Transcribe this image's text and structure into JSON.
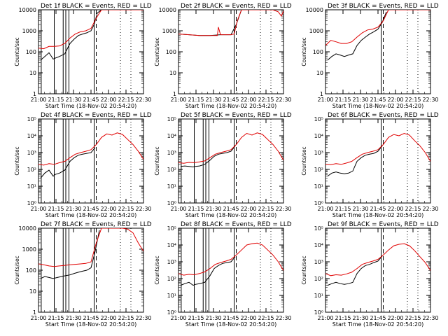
{
  "x_tick_labels": [
    "21:00",
    "21:15",
    "21:30",
    "21:45",
    "22:00",
    "22:15",
    "22:30"
  ],
  "x_axis_label": "Start Time (18-Nov-02 20:54:20)",
  "y_axis_label": "Counts/sec",
  "colors": {
    "events": "#000000",
    "lld": "#e00000"
  },
  "chart_data": [
    {
      "type": "line",
      "title": "Det 1f BLACK = Events, RED = LLD",
      "yscale": "log",
      "ylim": [
        1,
        10000
      ],
      "ytick_style": "plain",
      "grid": false,
      "xlabel": "Start Time (18-Nov-02 20:54:20)",
      "ylabel": "Counts/sec",
      "x_unit": "minutes since 20:54:20",
      "xlim": [
        0,
        100
      ],
      "solid_vlines": [
        2.6,
        15,
        23.5,
        26,
        29,
        53
      ],
      "dashed_vlines": [
        55
      ],
      "dotted_vlines": [
        78,
        88
      ],
      "saturate": true,
      "series": [
        {
          "name": "Events",
          "color": "#000000",
          "x": [
            2,
            6,
            10,
            14,
            16,
            20,
            25,
            30,
            34,
            38,
            42,
            46,
            50,
            53,
            56,
            60
          ],
          "y": [
            40,
            60,
            90,
            45,
            50,
            60,
            80,
            250,
            400,
            600,
            700,
            800,
            1000,
            2000,
            7000,
            10000
          ]
        },
        {
          "name": "LLD",
          "color": "#e00000",
          "x": [
            0,
            5,
            10,
            15,
            20,
            25,
            30,
            35,
            40,
            45,
            50,
            55,
            60,
            65,
            70,
            75,
            80,
            85,
            90,
            95,
            100
          ],
          "y": [
            150,
            140,
            180,
            180,
            190,
            250,
            450,
            700,
            900,
            1000,
            1300,
            4000,
            10000,
            10000,
            10000,
            10000,
            10000,
            10000,
            10000,
            10000,
            10000
          ]
        }
      ]
    },
    {
      "type": "line",
      "title": "Det 2f BLACK = Events, RED = LLD",
      "yscale": "log",
      "ylim": [
        1,
        10000
      ],
      "ytick_style": "plain",
      "grid": false,
      "xlabel": "Start Time (18-Nov-02 20:54:20)",
      "ylabel": "Counts/sec",
      "x_unit": "minutes since 20:54:20",
      "xlim": [
        0,
        100
      ],
      "solid_vlines": [
        53
      ],
      "dashed_vlines": [
        55
      ],
      "dotted_vlines": [
        78,
        88
      ],
      "saturate": true,
      "series": [
        {
          "name": "Events",
          "color": "#000000",
          "x": [
            0,
            10,
            20,
            30,
            40,
            50,
            55,
            60
          ],
          "y": [
            700,
            650,
            600,
            600,
            650,
            650,
            2000,
            10000
          ]
        },
        {
          "name": "LLD",
          "color": "#e00000",
          "x": [
            0,
            10,
            20,
            30,
            37,
            38,
            40,
            50,
            53,
            56,
            60,
            70,
            80,
            90,
            95,
            98,
            100
          ],
          "y": [
            700,
            650,
            600,
            600,
            600,
            1500,
            650,
            650,
            700,
            3000,
            10000,
            10000,
            10000,
            10000,
            8000,
            5000,
            9000
          ]
        }
      ]
    },
    {
      "type": "line",
      "title": "Det 3f BLACK = Events, RED = LLD",
      "yscale": "log",
      "ylim": [
        1,
        10000
      ],
      "ytick_style": "plain",
      "grid": false,
      "xlabel": "Start Time (18-Nov-02 20:54:20)",
      "ylabel": "Counts/sec",
      "x_unit": "minutes since 20:54:20",
      "xlim": [
        0,
        100
      ],
      "solid_vlines": [
        53
      ],
      "dashed_vlines": [
        55
      ],
      "dotted_vlines": [
        78,
        88
      ],
      "saturate": true,
      "series": [
        {
          "name": "Events",
          "color": "#000000",
          "x": [
            2,
            6,
            10,
            14,
            18,
            22,
            26,
            30,
            34,
            38,
            42,
            46,
            50,
            54,
            58
          ],
          "y": [
            40,
            60,
            80,
            70,
            60,
            70,
            80,
            200,
            350,
            500,
            700,
            900,
            1200,
            2500,
            8000
          ]
        },
        {
          "name": "LLD",
          "color": "#e00000",
          "x": [
            0,
            5,
            10,
            15,
            20,
            25,
            30,
            35,
            40,
            45,
            50,
            55,
            60,
            70,
            80,
            90,
            100
          ],
          "y": [
            200,
            350,
            300,
            250,
            250,
            300,
            500,
            800,
            1100,
            1200,
            1500,
            3000,
            10000,
            10000,
            10000,
            10000,
            10000
          ]
        }
      ]
    },
    {
      "type": "line",
      "title": "Det 4f BLACK = Events, RED = LLD",
      "yscale": "log",
      "ylim": [
        1,
        100000
      ],
      "ytick_style": "power",
      "grid": false,
      "xlabel": "Start Time (18-Nov-02 20:54:20)",
      "ylabel": "Counts/sec",
      "x_unit": "minutes since 20:54:20",
      "xlim": [
        0,
        100
      ],
      "solid_vlines": [
        2.6,
        15,
        23.5,
        26,
        29,
        53
      ],
      "dashed_vlines": [
        55
      ],
      "dotted_vlines": [
        78,
        88
      ],
      "saturate": false,
      "series": [
        {
          "name": "Events",
          "color": "#000000",
          "x": [
            2,
            6,
            10,
            14,
            16,
            20,
            25,
            30,
            34,
            38,
            42,
            46,
            50,
            54
          ],
          "y": [
            30,
            60,
            90,
            40,
            50,
            60,
            90,
            300,
            500,
            700,
            800,
            900,
            1000,
            2000
          ]
        },
        {
          "name": "LLD",
          "color": "#e00000",
          "x": [
            0,
            5,
            10,
            15,
            20,
            25,
            30,
            35,
            40,
            45,
            50,
            55,
            60,
            65,
            70,
            75,
            80,
            85,
            90,
            95,
            100
          ],
          "y": [
            200,
            180,
            220,
            200,
            250,
            300,
            500,
            800,
            1000,
            1200,
            1500,
            3000,
            8000,
            13000,
            11000,
            15000,
            12000,
            6000,
            3000,
            1200,
            400
          ]
        }
      ]
    },
    {
      "type": "line",
      "title": "Det 5f BLACK = Events, RED = LLD",
      "yscale": "log",
      "ylim": [
        1,
        100000
      ],
      "ytick_style": "power",
      "grid": false,
      "xlabel": "Start Time (18-Nov-02 20:54:20)",
      "ylabel": "Counts/sec",
      "x_unit": "minutes since 20:54:20",
      "xlim": [
        0,
        100
      ],
      "solid_vlines": [
        2.6,
        15,
        23.5,
        26,
        29,
        53
      ],
      "dashed_vlines": [
        55
      ],
      "dotted_vlines": [
        78,
        88
      ],
      "saturate": false,
      "series": [
        {
          "name": "Events",
          "color": "#000000",
          "x": [
            2,
            6,
            10,
            14,
            16,
            20,
            25,
            30,
            34,
            38,
            42,
            46,
            50,
            54
          ],
          "y": [
            150,
            160,
            150,
            140,
            150,
            160,
            200,
            350,
            600,
            800,
            900,
            1000,
            1200,
            2500
          ]
        },
        {
          "name": "LLD",
          "color": "#e00000",
          "x": [
            0,
            5,
            10,
            15,
            20,
            25,
            30,
            35,
            40,
            45,
            50,
            55,
            60,
            65,
            70,
            75,
            80,
            85,
            90,
            95,
            100
          ],
          "y": [
            250,
            230,
            260,
            250,
            280,
            320,
            500,
            800,
            1000,
            1200,
            1500,
            3000,
            8000,
            14000,
            11000,
            15000,
            12000,
            6000,
            3000,
            1200,
            350
          ]
        }
      ]
    },
    {
      "type": "line",
      "title": "Det 6f BLACK = Events, RED = LLD",
      "yscale": "log",
      "ylim": [
        1,
        100000
      ],
      "ytick_style": "power",
      "grid": false,
      "xlabel": "Start Time (18-Nov-02 20:54:20)",
      "ylabel": "Counts/sec",
      "x_unit": "minutes since 20:54:20",
      "xlim": [
        0,
        100
      ],
      "solid_vlines": [
        53
      ],
      "dashed_vlines": [
        55
      ],
      "dotted_vlines": [
        78,
        88
      ],
      "saturate": false,
      "series": [
        {
          "name": "Events",
          "color": "#000000",
          "x": [
            2,
            6,
            10,
            14,
            18,
            22,
            26,
            30,
            34,
            38,
            42,
            46,
            50,
            54
          ],
          "y": [
            40,
            60,
            70,
            60,
            55,
            60,
            80,
            300,
            500,
            700,
            800,
            900,
            1200,
            2500
          ]
        },
        {
          "name": "LLD",
          "color": "#e00000",
          "x": [
            0,
            5,
            10,
            15,
            20,
            25,
            30,
            35,
            40,
            45,
            50,
            55,
            60,
            65,
            70,
            75,
            80,
            85,
            90,
            95,
            100
          ],
          "y": [
            200,
            190,
            220,
            200,
            240,
            300,
            500,
            800,
            1000,
            1200,
            1500,
            3000,
            8000,
            12000,
            10000,
            14000,
            11000,
            5000,
            2500,
            1000,
            300
          ]
        }
      ]
    },
    {
      "type": "line",
      "title": "Det 7f BLACK = Events, RED = LLD",
      "yscale": "log",
      "ylim": [
        1,
        10000
      ],
      "ytick_style": "plain",
      "grid": false,
      "xlabel": "Start Time (18-Nov-02 20:54:20)",
      "ylabel": "Counts/sec",
      "x_unit": "minutes since 20:54:20",
      "xlim": [
        0,
        100
      ],
      "solid_vlines": [
        2.6,
        15,
        23.5,
        26,
        29,
        53
      ],
      "dashed_vlines": [
        55
      ],
      "dotted_vlines": [
        78,
        88
      ],
      "saturate": true,
      "series": [
        {
          "name": "Events",
          "color": "#000000",
          "x": [
            2,
            6,
            10,
            14,
            18,
            22,
            26,
            30,
            34,
            38,
            42,
            46,
            50,
            54,
            58
          ],
          "y": [
            40,
            50,
            45,
            40,
            45,
            50,
            55,
            60,
            70,
            80,
            90,
            100,
            130,
            800,
            8000
          ]
        },
        {
          "name": "LLD",
          "color": "#e00000",
          "x": [
            0,
            5,
            10,
            15,
            20,
            25,
            30,
            35,
            40,
            45,
            50,
            55,
            60,
            70,
            80,
            85,
            90,
            95,
            100
          ],
          "y": [
            200,
            180,
            160,
            150,
            160,
            170,
            180,
            190,
            200,
            210,
            250,
            2000,
            10000,
            10000,
            10000,
            9000,
            6000,
            2000,
            800
          ]
        }
      ]
    },
    {
      "type": "line",
      "title": "Det 8f BLACK = Events, RED = LLD",
      "yscale": "log",
      "ylim": [
        1,
        100000
      ],
      "ytick_style": "power",
      "grid": false,
      "xlabel": "Start Time (18-Nov-02 20:54:20)",
      "ylabel": "Counts/sec",
      "x_unit": "minutes since 20:54:20",
      "xlim": [
        0,
        100
      ],
      "solid_vlines": [
        2.6,
        15,
        23.5,
        26,
        29,
        53
      ],
      "dashed_vlines": [
        55
      ],
      "dotted_vlines": [
        78,
        88
      ],
      "saturate": false,
      "series": [
        {
          "name": "Events",
          "color": "#000000",
          "x": [
            2,
            6,
            10,
            14,
            16,
            20,
            25,
            30,
            34,
            38,
            42,
            46,
            50,
            54
          ],
          "y": [
            40,
            50,
            60,
            40,
            45,
            50,
            60,
            150,
            400,
            600,
            800,
            900,
            1000,
            2000
          ]
        },
        {
          "name": "LLD",
          "color": "#e00000",
          "x": [
            0,
            5,
            10,
            15,
            20,
            25,
            30,
            35,
            40,
            45,
            50,
            55,
            60,
            65,
            70,
            75,
            80,
            85,
            90,
            95,
            100
          ],
          "y": [
            200,
            160,
            180,
            170,
            200,
            250,
            400,
            700,
            900,
            1100,
            1400,
            2500,
            5000,
            10000,
            12000,
            13000,
            10000,
            5000,
            2500,
            1000,
            300
          ]
        }
      ]
    },
    {
      "type": "line",
      "title": "Det 9f BLACK = Events, RED = LLD",
      "yscale": "log",
      "ylim": [
        1,
        100000
      ],
      "ytick_style": "power",
      "grid": false,
      "xlabel": "Start Time (18-Nov-02 20:54:20)",
      "ylabel": "Counts/sec",
      "x_unit": "minutes since 20:54:20",
      "xlim": [
        0,
        100
      ],
      "solid_vlines": [
        53
      ],
      "dashed_vlines": [
        55
      ],
      "dotted_vlines": [
        78,
        88
      ],
      "saturate": false,
      "series": [
        {
          "name": "Events",
          "color": "#000000",
          "x": [
            2,
            6,
            10,
            14,
            18,
            22,
            26,
            30,
            34,
            38,
            42,
            46,
            50,
            54
          ],
          "y": [
            40,
            50,
            60,
            50,
            45,
            50,
            60,
            200,
            400,
            600,
            700,
            900,
            1100,
            2200
          ]
        },
        {
          "name": "LLD",
          "color": "#e00000",
          "x": [
            0,
            5,
            10,
            15,
            20,
            25,
            30,
            35,
            40,
            45,
            50,
            55,
            60,
            65,
            70,
            75,
            80,
            85,
            90,
            95,
            100
          ],
          "y": [
            200,
            150,
            170,
            160,
            190,
            240,
            400,
            700,
            900,
            1100,
            1400,
            2500,
            5000,
            9000,
            11000,
            12000,
            9000,
            4500,
            2000,
            900,
            300
          ]
        }
      ]
    }
  ]
}
